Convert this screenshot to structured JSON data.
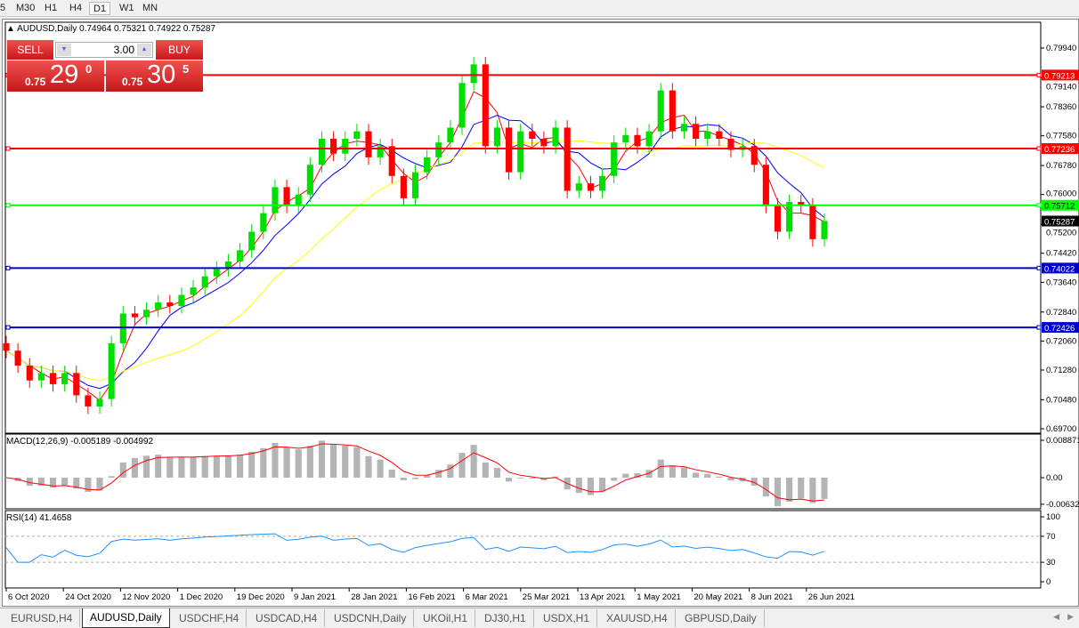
{
  "timeframes": [
    "5",
    "M30",
    "H1",
    "H4",
    "D1",
    "W1",
    "MN"
  ],
  "active_timeframe": "D1",
  "chart": {
    "symbol_line": "AUDUSD,Daily  0.74964 0.75321 0.74922 0.75287"
  },
  "trade_panel": {
    "sell_label": "SELL",
    "buy_label": "BUY",
    "lot": "3.00",
    "sell_prefix": "0.75",
    "sell_big": "29",
    "sell_sup": "0",
    "buy_prefix": "0.75",
    "buy_big": "30",
    "buy_sup": "5"
  },
  "colors": {
    "bull": "#00e000",
    "bear": "#ff0000",
    "ma_fast": "#ff0000",
    "ma_mid": "#0000ff",
    "ma_slow": "#ffff00",
    "macd_hist": "#b4b4b4",
    "macd_signal": "#ff0000",
    "rsi": "#1e90ff"
  },
  "chart_data": [
    {
      "type": "candlestick",
      "title": "AUDUSD,Daily",
      "price_ticks": [
        "0.79940",
        "0.79140",
        "0.78360",
        "0.77580",
        "0.76780",
        "0.76000",
        "0.75200",
        "0.74420",
        "0.73640",
        "0.72840",
        "0.72060",
        "0.71280",
        "0.70480",
        "0.69700"
      ],
      "ylim": [
        0.697,
        0.7994
      ],
      "horizontal_lines": [
        {
          "price": "0.79213",
          "color": "#ff0000"
        },
        {
          "price": "0.77236",
          "color": "#ff0000"
        },
        {
          "price": "0.75712",
          "color": "#00ff00"
        },
        {
          "price": "0.74022",
          "color": "#0000cc"
        },
        {
          "price": "0.72426",
          "color": "#0000cc"
        }
      ],
      "current_price": "0.75287",
      "closes": [
        0.718,
        0.714,
        0.71,
        0.712,
        0.709,
        0.712,
        0.706,
        0.703,
        0.705,
        0.72,
        0.728,
        0.727,
        0.729,
        0.731,
        0.73,
        0.733,
        0.735,
        0.738,
        0.74,
        0.742,
        0.745,
        0.75,
        0.755,
        0.762,
        0.757,
        0.76,
        0.768,
        0.775,
        0.771,
        0.775,
        0.777,
        0.77,
        0.773,
        0.765,
        0.759,
        0.766,
        0.77,
        0.774,
        0.778,
        0.79,
        0.795,
        0.773,
        0.778,
        0.766,
        0.777,
        0.775,
        0.773,
        0.778,
        0.761,
        0.763,
        0.761,
        0.765,
        0.774,
        0.776,
        0.773,
        0.777,
        0.788,
        0.777,
        0.779,
        0.775,
        0.777,
        0.775,
        0.772,
        0.773,
        0.768,
        0.757,
        0.75,
        0.758,
        0.757,
        0.748,
        0.7529
      ],
      "x_ticks": [
        "6 Oct 2020",
        "24 Oct 2020",
        "12 Nov 2020",
        "1 Dec 2020",
        "19 Dec 2020",
        "9 Jan 2021",
        "28 Jan 2021",
        "16 Feb 2021",
        "6 Mar 2021",
        "25 Mar 2021",
        "13 Apr 2021",
        "1 May 2021",
        "20 May 2021",
        "8 Jun 2021",
        "26 Jun 2021"
      ]
    },
    {
      "type": "bar",
      "title": "MACD(12,26,9) -0.005189 -0.004992",
      "y_ticks": [
        "0.008871",
        "0.00",
        "-0.00632"
      ],
      "ylim": [
        -0.00632,
        0.008871
      ]
    },
    {
      "type": "line",
      "title": "RSI(14) 41.4658",
      "y_ticks": [
        "100",
        "70",
        "30",
        "0"
      ],
      "ylim": [
        0,
        100
      ],
      "levels": [
        70,
        30
      ]
    }
  ],
  "tabs": [
    "EURUSD,H4",
    "AUDUSD,Daily",
    "USDCHF,H4",
    "USDCAD,H4",
    "USDCNH,Daily",
    "UKOil,H1",
    "DJ30,H1",
    "USDX,H1",
    "XAUUSD,H4",
    "GBPUSD,Daily"
  ],
  "active_tab": "AUDUSD,Daily"
}
